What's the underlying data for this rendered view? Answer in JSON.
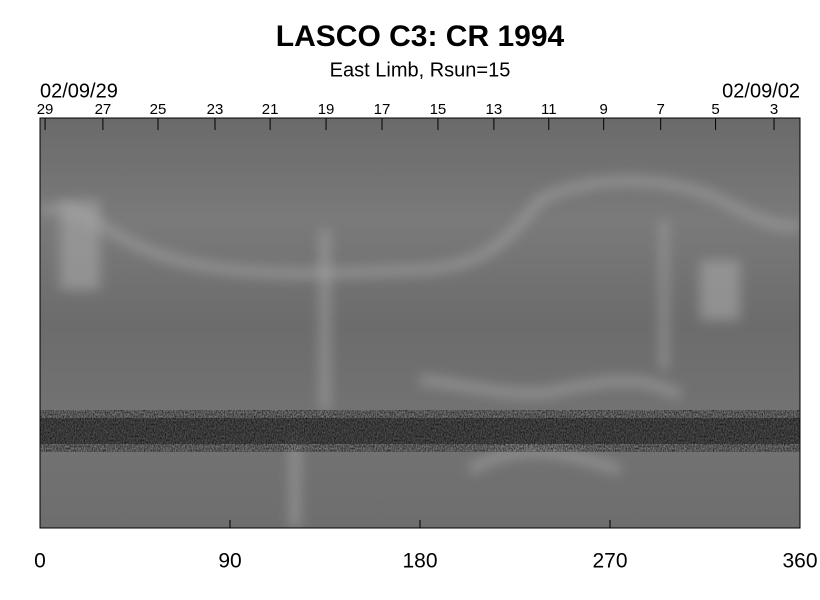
{
  "chart_data": {
    "type": "synoptic-map",
    "title": "LASCO C3: CR 1994",
    "subtitle": "East Limb, Rsun=15",
    "date_left": "02/09/29",
    "date_right": "02/09/02",
    "xlim": [
      0,
      360
    ],
    "xticks": [
      0,
      90,
      180,
      270,
      360
    ],
    "x2ticks": [
      {
        "value": 2.4,
        "label": "29"
      },
      {
        "value": 29.8,
        "label": "27"
      },
      {
        "value": 55.9,
        "label": "25"
      },
      {
        "value": 82.9,
        "label": "23"
      },
      {
        "value": 109,
        "label": "21"
      },
      {
        "value": 135.5,
        "label": "19"
      },
      {
        "value": 162,
        "label": "17"
      },
      {
        "value": 188.5,
        "label": "15"
      },
      {
        "value": 215,
        "label": "13"
      },
      {
        "value": 241,
        "label": "11"
      },
      {
        "value": 267,
        "label": "9"
      },
      {
        "value": 294,
        "label": "7"
      },
      {
        "value": 320,
        "label": "5"
      },
      {
        "value": 347.7,
        "label": "3"
      }
    ]
  }
}
